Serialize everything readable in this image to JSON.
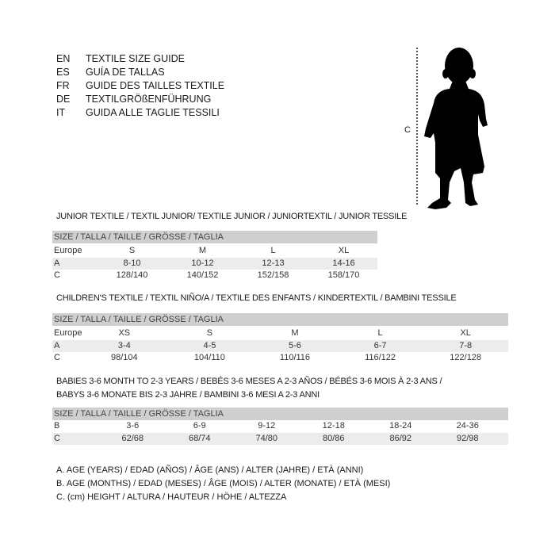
{
  "header": {
    "languages": [
      {
        "code": "EN",
        "name": "TEXTILE SIZE GUIDE"
      },
      {
        "code": "ES",
        "name": "GUÍA DE TALLAS"
      },
      {
        "code": "FR",
        "name": "GUIDE DES TAILLES TEXTILE"
      },
      {
        "code": "DE",
        "name": "TEXTILGRÖßENFÜHRUNG"
      },
      {
        "code": "IT",
        "name": "GUIDA ALLE TAGLIE TESSILI"
      }
    ]
  },
  "figure": {
    "measure_label": "C",
    "icon": "baby-silhouette-icon"
  },
  "junior": {
    "title": "JUNIOR TEXTILE / TEXTIL JUNIOR/ TEXTILE JUNIOR / JUNIORTEXTIL / JUNIOR TESSILE",
    "size_header": "SIZE / TALLA / TAILLE / GRÖSSE / TAGLIA",
    "rows": [
      {
        "label": "Europe",
        "values": [
          "S",
          "M",
          "L",
          "XL"
        ]
      },
      {
        "label": "A",
        "values": [
          "8-10",
          "10-12",
          "12-13",
          "14-16"
        ]
      },
      {
        "label": "C",
        "values": [
          "128/140",
          "140/152",
          "152/158",
          "158/170"
        ]
      }
    ]
  },
  "children": {
    "title": "CHILDREN'S TEXTILE / TEXTIL NIÑO/A / TEXTILE DES ENFANTS / KINDERTEXTIL / BAMBINI TESSILE",
    "size_header": "SIZE / TALLA / TAILLE / GRÖSSE / TAGLIA",
    "rows": [
      {
        "label": "Europe",
        "values": [
          "XS",
          "S",
          "M",
          "L",
          "XL"
        ]
      },
      {
        "label": "A",
        "values": [
          "3-4",
          "4-5",
          "5-6",
          "6-7",
          "7-8"
        ]
      },
      {
        "label": "C",
        "values": [
          "98/104",
          "104/110",
          "110/116",
          "116/122",
          "122/128"
        ]
      }
    ]
  },
  "babies": {
    "title_line1": "BABIES 3-6 MONTH TO 2-3 YEARS / BEBÉS 3-6 MESES A 2-3 AÑOS / BÉBÉS 3-6 MOIS À 2-3 ANS /",
    "title_line2": "BABYS 3-6 MONATE BIS 2-3 JAHRE / BAMBINI 3-6 MESI A 2-3 ANNI",
    "size_header": "SIZE / TALLA / TAILLE / GRÖSSE / TAGLIA",
    "rows": [
      {
        "label": "B",
        "values": [
          "3-6",
          "6-9",
          "9-12",
          "12-18",
          "18-24",
          "24-36"
        ]
      },
      {
        "label": "C",
        "values": [
          "62/68",
          "68/74",
          "74/80",
          "80/86",
          "86/92",
          "92/98"
        ]
      }
    ]
  },
  "legend": [
    "A. AGE (YEARS) / EDAD (AÑOS) / ÂGE (ANS) / ALTER (JAHRE) / ETÀ (ANNI)",
    "B. AGE (MONTHS) / EDAD (MESES) / ÂGE (MOIS) / ALTER (MONATE) / ETÀ (MESI)",
    "C. (cm) HEIGHT / ALTURA / HAUTEUR / HÖHE / ALTEZZA"
  ]
}
